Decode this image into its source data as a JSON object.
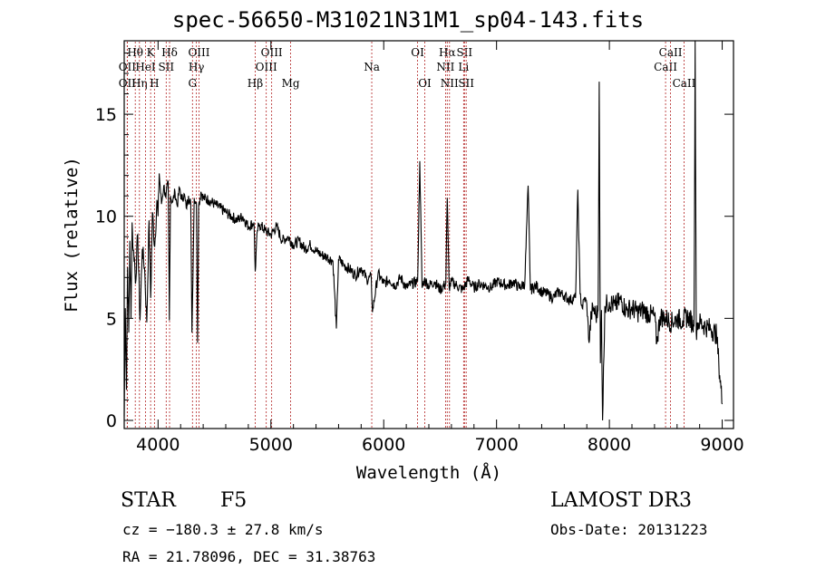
{
  "title": "spec-56650-M31021N31M1_sp04-143.fits",
  "info": {
    "class": "STAR",
    "subclass": "F5",
    "survey": "LAMOST DR3",
    "cz": "cz = −180.3 ± 27.8 km/s",
    "obs_date": "Obs-Date: 20131223",
    "coords": "RA =  21.78096, DEC =  31.38763"
  },
  "chart_data": {
    "type": "line",
    "title": "spec-56650-M31021N31M1_sp04-143.fits",
    "xlabel": "Wavelength (Å)",
    "ylabel": "Flux (relative)",
    "xlim": [
      3700,
      9100
    ],
    "ylim": [
      -0.4,
      18.6
    ],
    "xticks": [
      4000,
      5000,
      6000,
      7000,
      8000,
      9000
    ],
    "yticks": [
      0,
      5,
      10,
      15
    ],
    "series": [
      {
        "name": "flux",
        "x": [
          3700,
          3710,
          3720,
          3730,
          3740,
          3750,
          3760,
          3770,
          3780,
          3790,
          3800,
          3820,
          3840,
          3860,
          3880,
          3900,
          3920,
          3935,
          3950,
          3970,
          3990,
          4000,
          4010,
          4030,
          4050,
          4070,
          4090,
          4100,
          4110,
          4130,
          4150,
          4170,
          4190,
          4210,
          4230,
          4250,
          4270,
          4290,
          4300,
          4320,
          4340,
          4350,
          4360,
          4380,
          4400,
          4450,
          4500,
          4550,
          4600,
          4650,
          4700,
          4750,
          4800,
          4850,
          4861,
          4880,
          4900,
          4950,
          5000,
          5050,
          5100,
          5150,
          5200,
          5250,
          5300,
          5350,
          5400,
          5450,
          5500,
          5550,
          5580,
          5600,
          5650,
          5700,
          5750,
          5800,
          5850,
          5890,
          5900,
          5950,
          6000,
          6050,
          6100,
          6150,
          6200,
          6250,
          6300,
          6320,
          6340,
          6360,
          6400,
          6450,
          6500,
          6550,
          6563,
          6580,
          6600,
          6650,
          6700,
          6750,
          6800,
          6850,
          6900,
          6950,
          7000,
          7050,
          7100,
          7150,
          7200,
          7250,
          7280,
          7300,
          7350,
          7400,
          7450,
          7500,
          7550,
          7600,
          7650,
          7700,
          7720,
          7740,
          7760,
          7780,
          7800,
          7820,
          7840,
          7860,
          7880,
          7900,
          7910,
          7920,
          7930,
          7940,
          7960,
          7980,
          8000,
          8050,
          8100,
          8150,
          8200,
          8250,
          8300,
          8350,
          8400,
          8420,
          8450,
          8500,
          8550,
          8600,
          8650,
          8700,
          8740,
          8750,
          8760,
          8770,
          8780,
          8800,
          8850,
          8900,
          8950,
          8970,
          9000
        ],
        "values": [
          0.2,
          5.5,
          1.5,
          7.5,
          4.3,
          8.8,
          5.0,
          9.7,
          8.3,
          8.0,
          6.7,
          9.1,
          4.9,
          8.4,
          7.5,
          4.8,
          9.8,
          6.0,
          10.2,
          8.5,
          10.8,
          10.0,
          12.1,
          10.6,
          11.5,
          10.9,
          11.7,
          4.9,
          11.0,
          10.7,
          11.2,
          10.5,
          11.4,
          10.8,
          11.1,
          10.4,
          11.0,
          10.6,
          4.3,
          10.9,
          10.7,
          3.8,
          10.5,
          11.2,
          10.9,
          10.8,
          10.6,
          10.4,
          10.2,
          10.0,
          9.8,
          10.0,
          9.5,
          9.7,
          7.3,
          9.3,
          9.6,
          9.3,
          9.1,
          9.5,
          8.8,
          9.0,
          8.6,
          8.8,
          8.4,
          8.6,
          8.3,
          8.1,
          8.0,
          7.8,
          4.5,
          7.9,
          7.6,
          7.4,
          7.1,
          7.5,
          6.9,
          7.0,
          5.3,
          7.2,
          6.7,
          6.9,
          6.6,
          7.0,
          6.5,
          6.7,
          6.8,
          12.7,
          6.5,
          6.9,
          6.6,
          6.8,
          6.4,
          6.7,
          10.9,
          6.5,
          6.8,
          6.6,
          6.4,
          6.9,
          6.5,
          6.7,
          6.6,
          6.5,
          6.8,
          6.7,
          6.6,
          6.8,
          6.5,
          6.7,
          11.5,
          6.4,
          6.6,
          6.3,
          6.2,
          6.0,
          6.3,
          6.1,
          5.9,
          6.0,
          11.3,
          6.2,
          5.5,
          6.0,
          5.7,
          3.8,
          5.2,
          5.5,
          5.1,
          5.4,
          16.6,
          2.8,
          5.4,
          0.0,
          5.6,
          5.7,
          5.8,
          5.6,
          5.9,
          5.4,
          5.5,
          5.3,
          5.4,
          5.2,
          5.1,
          3.8,
          5.1,
          5.0,
          4.8,
          5.0,
          4.9,
          5.1,
          4.7,
          4.6,
          18.6,
          4.3,
          4.8,
          4.8,
          4.6,
          4.5,
          4.2,
          2.8,
          0.8
        ]
      }
    ],
    "lines": [
      {
        "name": "OII",
        "wl": 3727,
        "row": 3
      },
      {
        "name": "Hθ",
        "wl": 3798,
        "row": 1
      },
      {
        "name": "OII",
        "wl": 3727,
        "row": 2
      },
      {
        "name": "Hη",
        "wl": 3835,
        "row": 3
      },
      {
        "name": "HeI",
        "wl": 3889,
        "row": 2
      },
      {
        "name": "K",
        "wl": 3934,
        "row": 1
      },
      {
        "name": "H",
        "wl": 3968,
        "row": 3
      },
      {
        "name": "SII",
        "wl": 4072,
        "row": 2
      },
      {
        "name": "Hδ",
        "wl": 4102,
        "row": 1
      },
      {
        "name": "G",
        "wl": 4305,
        "row": 3
      },
      {
        "name": "Hγ",
        "wl": 4340,
        "row": 2
      },
      {
        "name": "OIII",
        "wl": 4363,
        "row": 1
      },
      {
        "name": "Hβ",
        "wl": 4861,
        "row": 3
      },
      {
        "name": "OIII",
        "wl": 4959,
        "row": 2
      },
      {
        "name": "OIII",
        "wl": 5007,
        "row": 1
      },
      {
        "name": "Mg",
        "wl": 5175,
        "row": 3
      },
      {
        "name": "Na",
        "wl": 5894,
        "row": 2
      },
      {
        "name": "OI",
        "wl": 6300,
        "row": 1
      },
      {
        "name": "OI",
        "wl": 6364,
        "row": 3
      },
      {
        "name": "NII",
        "wl": 6548,
        "row": 2
      },
      {
        "name": "Hα",
        "wl": 6563,
        "row": 1
      },
      {
        "name": "NII",
        "wl": 6583,
        "row": 3
      },
      {
        "name": "SII",
        "wl": 6716,
        "row": 1
      },
      {
        "name": "Li",
        "wl": 6708,
        "row": 2
      },
      {
        "name": "SII",
        "wl": 6731,
        "row": 3
      },
      {
        "name": "CaII",
        "wl": 8498,
        "row": 2
      },
      {
        "name": "CaII",
        "wl": 8542,
        "row": 1
      },
      {
        "name": "CaII",
        "wl": 8662,
        "row": 3
      }
    ],
    "colors": {
      "spectrum": "#000000",
      "lines": "#b22222",
      "axes": "#000000"
    }
  }
}
